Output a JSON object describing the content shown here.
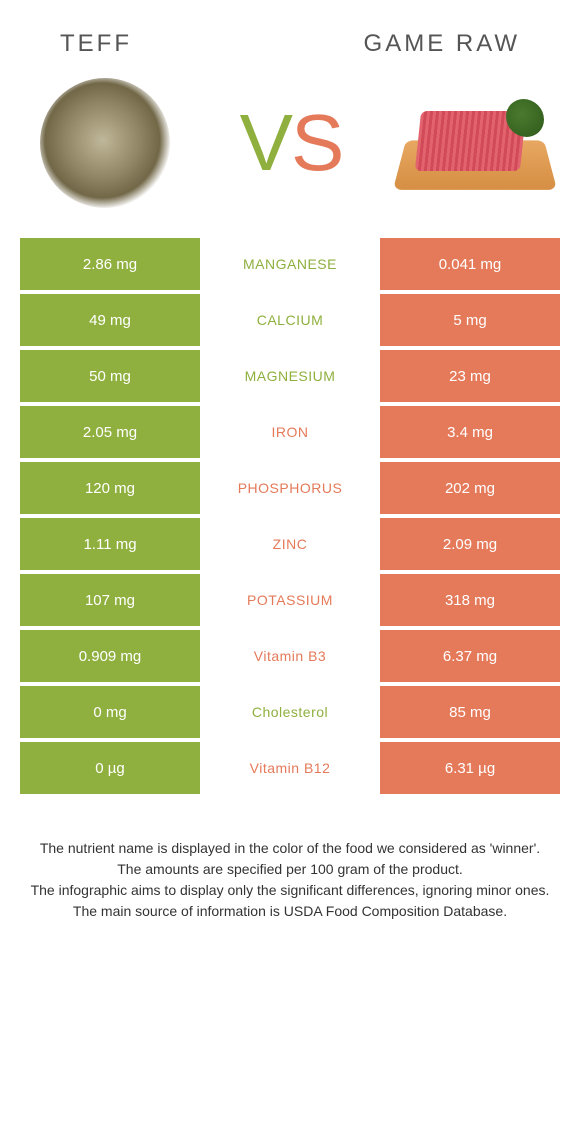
{
  "header": {
    "left_title": "TEFF",
    "right_title": "GAME RAW"
  },
  "vs": {
    "v_letter": "V",
    "s_letter": "S",
    "v_color": "#8fb03e",
    "s_color": "#e57a5a"
  },
  "colors": {
    "left_bg": "#8fb03e",
    "right_bg": "#e57a5a",
    "left_text": "#8fb03e",
    "right_text": "#e57a5a"
  },
  "rows": [
    {
      "left": "2.86 mg",
      "name": "MANGANESE",
      "right": "0.041 mg",
      "winner": "left"
    },
    {
      "left": "49 mg",
      "name": "CALCIUM",
      "right": "5 mg",
      "winner": "left"
    },
    {
      "left": "50 mg",
      "name": "MAGNESIUM",
      "right": "23 mg",
      "winner": "left"
    },
    {
      "left": "2.05 mg",
      "name": "IRON",
      "right": "3.4 mg",
      "winner": "right"
    },
    {
      "left": "120 mg",
      "name": "PHOSPHORUS",
      "right": "202 mg",
      "winner": "right"
    },
    {
      "left": "1.11 mg",
      "name": "ZINC",
      "right": "2.09 mg",
      "winner": "right"
    },
    {
      "left": "107 mg",
      "name": "POTASSIUM",
      "right": "318 mg",
      "winner": "right"
    },
    {
      "left": "0.909 mg",
      "name": "Vitamin B3",
      "right": "6.37 mg",
      "winner": "right"
    },
    {
      "left": "0 mg",
      "name": "Cholesterol",
      "right": "85 mg",
      "winner": "left"
    },
    {
      "left": "0 µg",
      "name": "Vitamin B12",
      "right": "6.31 µg",
      "winner": "right"
    }
  ],
  "footer": {
    "line1": "The nutrient name is displayed in the color of the food we considered as 'winner'.",
    "line2": "The amounts are specified per 100 gram of the product.",
    "line3": "The infographic aims to display only the significant differences, ignoring minor ones.",
    "line4": "The main source of information is USDA Food Composition Database."
  }
}
